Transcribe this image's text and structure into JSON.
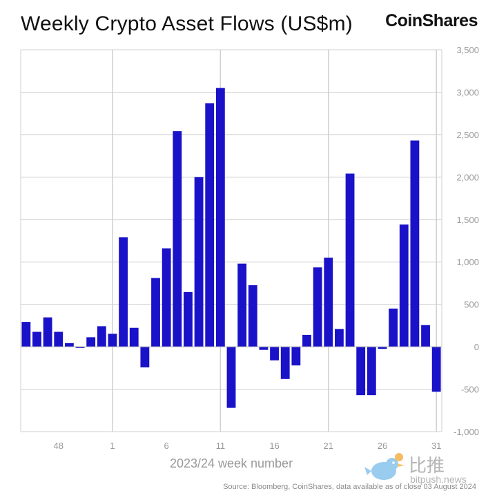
{
  "brand": "CoinShares",
  "watermark": {
    "cn": "比推",
    "en": "bitpush.news"
  },
  "colors": {
    "bar": "#1a12c8",
    "grid": "#cfcfcf",
    "text": "#999999"
  },
  "chart_data": {
    "type": "bar",
    "title": "Weekly Crypto Asset Flows (US$m)",
    "xlabel": "2023/24 week number",
    "ylabel": "",
    "ylim": [
      -1000,
      3500
    ],
    "yticks": [
      3500,
      3000,
      2500,
      2000,
      1500,
      1000,
      500,
      0,
      -500,
      -1000
    ],
    "ytick_labels": [
      "3,500",
      "3,000",
      "2,500",
      "2,000",
      "1,500",
      "1,000",
      "500",
      "0",
      "-500",
      "-1,000"
    ],
    "xtick_labels": [
      "48",
      "1",
      "6",
      "11",
      "16",
      "21",
      "26",
      "31"
    ],
    "xtick_weeks": [
      48,
      1,
      6,
      11,
      16,
      21,
      26,
      31
    ],
    "grid_weeks": [
      1,
      11,
      21,
      31
    ],
    "grid": true,
    "weeks": [
      45,
      46,
      47,
      48,
      49,
      50,
      51,
      52,
      1,
      2,
      3,
      4,
      5,
      6,
      7,
      8,
      9,
      10,
      11,
      12,
      13,
      14,
      15,
      16,
      17,
      18,
      19,
      20,
      21,
      22,
      23,
      24,
      25,
      26,
      27,
      28,
      29,
      30,
      31
    ],
    "values": [
      293,
      176,
      346,
      176,
      43,
      -14,
      112,
      242,
      153,
      1291,
      223,
      -243,
      810,
      1160,
      2540,
      645,
      2000,
      2870,
      3050,
      -720,
      980,
      725,
      -37,
      -160,
      -380,
      -220,
      140,
      935,
      1050,
      210,
      2040,
      -570,
      -570,
      -25,
      450,
      1440,
      2430,
      255,
      -530
    ],
    "source": "Source: Bloomberg, CoinShares, data available as of close 03 August 2024"
  }
}
